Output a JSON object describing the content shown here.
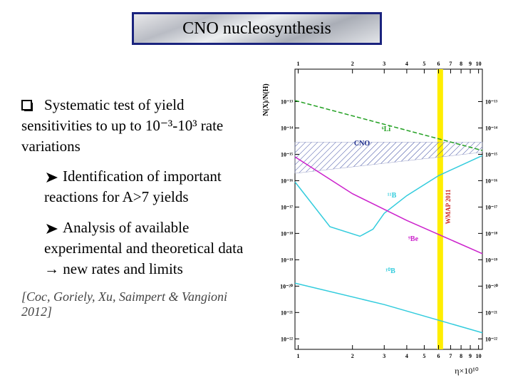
{
  "header": {
    "title": "CNO nucleosynthesis"
  },
  "body": {
    "bullet": "Systematic test of yield sensitivities to up to 10⁻³-10³ rate variations",
    "sub_bullets": [
      "Identification of important reactions for A>7 yields",
      "Analysis of available experimental and theoretical data → new rates and limits"
    ],
    "citation": "[Coc, Goriely, Xu, Saimpert & Vangioni 2012]"
  },
  "chart_data": {
    "type": "line",
    "x_label": "η×10¹⁰",
    "y_label": "N(X)/N(H)",
    "log_x": true,
    "log_y": true,
    "xlim": [
      0.96,
      10.5
    ],
    "ylim": [
      4e-23,
      1.7e-12
    ],
    "xticks": [
      1,
      2,
      3,
      4,
      5,
      6,
      7,
      8,
      9,
      10
    ],
    "yticks": [
      {
        "value": 1e-13,
        "label": "10⁻¹³"
      },
      {
        "value": 1e-14,
        "label": "10⁻¹⁴"
      },
      {
        "value": 1e-15,
        "label": "10⁻¹⁵"
      },
      {
        "value": 1e-16,
        "label": "10⁻¹⁶"
      },
      {
        "value": 1e-17,
        "label": "10⁻¹⁷"
      },
      {
        "value": 1e-18,
        "label": "10⁻¹⁸"
      },
      {
        "value": 1e-19,
        "label": "10⁻¹⁹"
      },
      {
        "value": 1e-20,
        "label": "10⁻²⁰"
      },
      {
        "value": 1e-21,
        "label": "10⁻²¹"
      },
      {
        "value": 1e-22,
        "label": "10⁻²²"
      }
    ],
    "band": {
      "name": "CNO",
      "color": "#1a2a8a",
      "x": [
        0.96,
        10.5
      ],
      "upper": [
        2.9e-15,
        2.9e-15
      ],
      "lower": [
        1.9e-16,
        1.2e-15
      ]
    },
    "series": [
      {
        "name": "⁶Li",
        "color": "#22a022",
        "dashed": true,
        "x": [
          0.96,
          10.5
        ],
        "values": [
          1.1e-13,
          1.4e-15
        ]
      },
      {
        "name": "¹¹B",
        "color": "#33ccdd",
        "dashed": false,
        "x": [
          0.96,
          1.5,
          2.2,
          2.6,
          3,
          4,
          6,
          10.5
        ],
        "values": [
          9e-17,
          1.8e-18,
          7.8e-19,
          1.45e-18,
          5.8e-18,
          2.7e-17,
          1.55e-16,
          9e-16
        ]
      },
      {
        "name": "⁹Be",
        "color": "#cc22cc",
        "dashed": false,
        "x": [
          0.96,
          2,
          4,
          10.5
        ],
        "values": [
          8e-16,
          3.2e-17,
          3.1e-18,
          1.7e-19
        ]
      },
      {
        "name": "¹⁰B",
        "color": "#33ccdd",
        "dashed": false,
        "x": [
          0.96,
          3,
          10.5
        ],
        "values": [
          1.3e-20,
          2e-21,
          1.7e-22
        ]
      }
    ],
    "wmap": {
      "x": 6.13,
      "label": "WMAP 2011",
      "color": "#ffee00",
      "label_color": "#cc2222"
    }
  }
}
